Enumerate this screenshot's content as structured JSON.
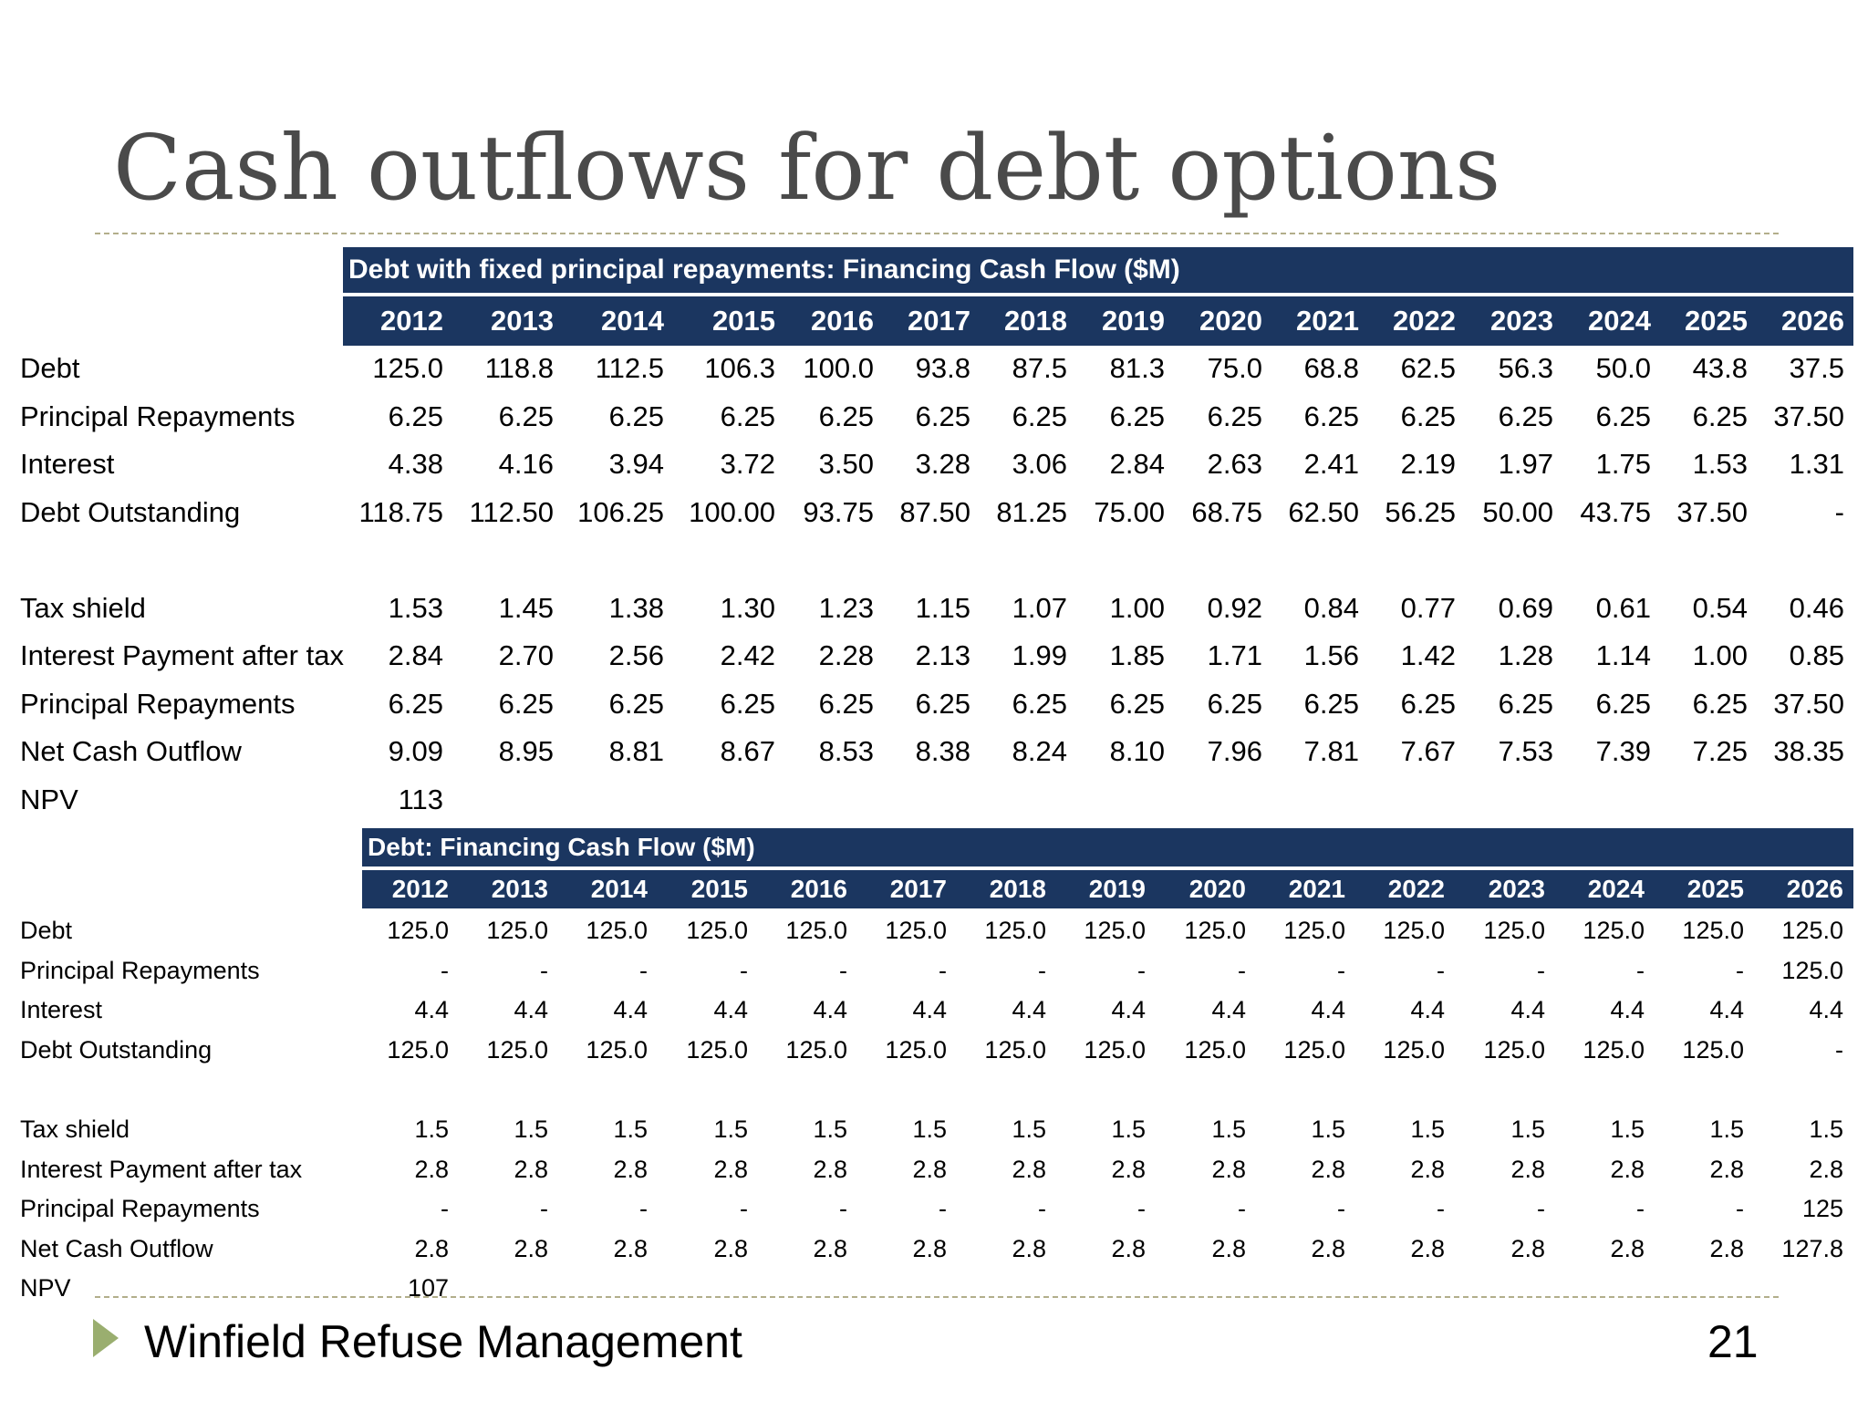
{
  "title": "Cash outflows for debt options",
  "years": [
    "2012",
    "2013",
    "2014",
    "2015",
    "2016",
    "2017",
    "2018",
    "2019",
    "2020",
    "2021",
    "2022",
    "2023",
    "2024",
    "2025",
    "2026"
  ],
  "table1": {
    "banner": "Debt with fixed principal repayments: Financing Cash Flow ($M)",
    "rows": [
      {
        "label": "Debt",
        "values": [
          "125.0",
          "118.8",
          "112.5",
          "106.3",
          "100.0",
          "93.8",
          "87.5",
          "81.3",
          "75.0",
          "68.8",
          "62.5",
          "56.3",
          "50.0",
          "43.8",
          "37.5"
        ]
      },
      {
        "label": "Principal Repayments",
        "values": [
          "6.25",
          "6.25",
          "6.25",
          "6.25",
          "6.25",
          "6.25",
          "6.25",
          "6.25",
          "6.25",
          "6.25",
          "6.25",
          "6.25",
          "6.25",
          "6.25",
          "37.50"
        ]
      },
      {
        "label": "Interest",
        "values": [
          "4.38",
          "4.16",
          "3.94",
          "3.72",
          "3.50",
          "3.28",
          "3.06",
          "2.84",
          "2.63",
          "2.41",
          "2.19",
          "1.97",
          "1.75",
          "1.53",
          "1.31"
        ]
      },
      {
        "label": "Debt Outstanding",
        "values": [
          "118.75",
          "112.50",
          "106.25",
          "100.00",
          "93.75",
          "87.50",
          "81.25",
          "75.00",
          "68.75",
          "62.50",
          "56.25",
          "50.00",
          "43.75",
          "37.50",
          "-"
        ]
      },
      {
        "label": "",
        "values": []
      },
      {
        "label": "Tax shield",
        "values": [
          "1.53",
          "1.45",
          "1.38",
          "1.30",
          "1.23",
          "1.15",
          "1.07",
          "1.00",
          "0.92",
          "0.84",
          "0.77",
          "0.69",
          "0.61",
          "0.54",
          "0.46"
        ]
      },
      {
        "label": "Interest Payment after tax",
        "values": [
          "2.84",
          "2.70",
          "2.56",
          "2.42",
          "2.28",
          "2.13",
          "1.99",
          "1.85",
          "1.71",
          "1.56",
          "1.42",
          "1.28",
          "1.14",
          "1.00",
          "0.85"
        ]
      },
      {
        "label": "Principal Repayments",
        "values": [
          "6.25",
          "6.25",
          "6.25",
          "6.25",
          "6.25",
          "6.25",
          "6.25",
          "6.25",
          "6.25",
          "6.25",
          "6.25",
          "6.25",
          "6.25",
          "6.25",
          "37.50"
        ]
      },
      {
        "label": "Net Cash Outflow",
        "values": [
          "9.09",
          "8.95",
          "8.81",
          "8.67",
          "8.53",
          "8.38",
          "8.24",
          "8.10",
          "7.96",
          "7.81",
          "7.67",
          "7.53",
          "7.39",
          "7.25",
          "38.35"
        ]
      },
      {
        "label": "NPV",
        "values": [
          "113"
        ]
      }
    ]
  },
  "table2": {
    "banner": "Debt: Financing Cash Flow ($M)",
    "rows": [
      {
        "label": "Debt",
        "values": [
          "125.0",
          "125.0",
          "125.0",
          "125.0",
          "125.0",
          "125.0",
          "125.0",
          "125.0",
          "125.0",
          "125.0",
          "125.0",
          "125.0",
          "125.0",
          "125.0",
          "125.0"
        ]
      },
      {
        "label": "Principal Repayments",
        "values": [
          "-",
          "-",
          "-",
          "-",
          "-",
          "-",
          "-",
          "-",
          "-",
          "-",
          "-",
          "-",
          "-",
          "-",
          "125.0"
        ]
      },
      {
        "label": "Interest",
        "values": [
          "4.4",
          "4.4",
          "4.4",
          "4.4",
          "4.4",
          "4.4",
          "4.4",
          "4.4",
          "4.4",
          "4.4",
          "4.4",
          "4.4",
          "4.4",
          "4.4",
          "4.4"
        ]
      },
      {
        "label": "Debt Outstanding",
        "values": [
          "125.0",
          "125.0",
          "125.0",
          "125.0",
          "125.0",
          "125.0",
          "125.0",
          "125.0",
          "125.0",
          "125.0",
          "125.0",
          "125.0",
          "125.0",
          "125.0",
          "-"
        ]
      },
      {
        "label": "",
        "values": []
      },
      {
        "label": "Tax shield",
        "values": [
          "1.5",
          "1.5",
          "1.5",
          "1.5",
          "1.5",
          "1.5",
          "1.5",
          "1.5",
          "1.5",
          "1.5",
          "1.5",
          "1.5",
          "1.5",
          "1.5",
          "1.5"
        ]
      },
      {
        "label": "Interest Payment after tax",
        "values": [
          "2.8",
          "2.8",
          "2.8",
          "2.8",
          "2.8",
          "2.8",
          "2.8",
          "2.8",
          "2.8",
          "2.8",
          "2.8",
          "2.8",
          "2.8",
          "2.8",
          "2.8"
        ]
      },
      {
        "label": "Principal Repayments",
        "values": [
          "-",
          "-",
          "-",
          "-",
          "-",
          "-",
          "-",
          "-",
          "-",
          "-",
          "-",
          "-",
          "-",
          "-",
          "125"
        ]
      },
      {
        "label": "Net Cash Outflow",
        "values": [
          "2.8",
          "2.8",
          "2.8",
          "2.8",
          "2.8",
          "2.8",
          "2.8",
          "2.8",
          "2.8",
          "2.8",
          "2.8",
          "2.8",
          "2.8",
          "2.8",
          "127.8"
        ]
      },
      {
        "label": "NPV",
        "values": [
          "107"
        ]
      }
    ]
  },
  "footer": {
    "text": "Winfield Refuse Management",
    "page_number": "21"
  },
  "colors": {
    "header_fill": "#1b3660",
    "title_text": "#4a4a4a",
    "divider": "#b2ae8b",
    "footer_arrow": "#9aae6f"
  },
  "icons": {
    "footer_bullet": "triangle-right-icon"
  }
}
